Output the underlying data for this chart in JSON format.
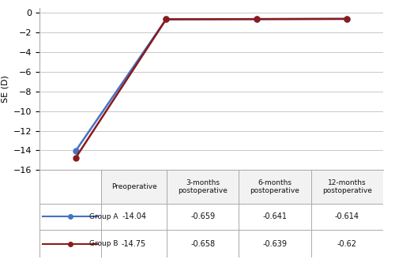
{
  "x_positions": [
    0,
    1,
    2,
    3
  ],
  "group_a": [
    -14.04,
    -0.659,
    -0.641,
    -0.614
  ],
  "group_b": [
    -14.75,
    -0.658,
    -0.639,
    -0.62
  ],
  "group_a_color": "#4472C4",
  "group_b_color": "#8B1A1A",
  "ylabel": "SE (D)",
  "ylim": [
    -16,
    0.5
  ],
  "yticks": [
    0,
    -2,
    -4,
    -6,
    -8,
    -10,
    -12,
    -14,
    -16
  ],
  "legend_a": "Group A",
  "legend_b": "Group B",
  "table_col_headers": [
    "Preoperative",
    "3-months\npostoperative",
    "6-months\npostoperative",
    "12-months\npostoperative"
  ],
  "table_row_a": [
    "-14.04",
    "-0.659",
    "-0.641",
    "-0.614"
  ],
  "table_row_b": [
    "-14.75",
    "-0.658",
    "-0.639",
    "-0.62"
  ],
  "background_color": "#ffffff",
  "grid_color": "#c8c8c8",
  "marker_size": 5,
  "line_width": 1.8
}
